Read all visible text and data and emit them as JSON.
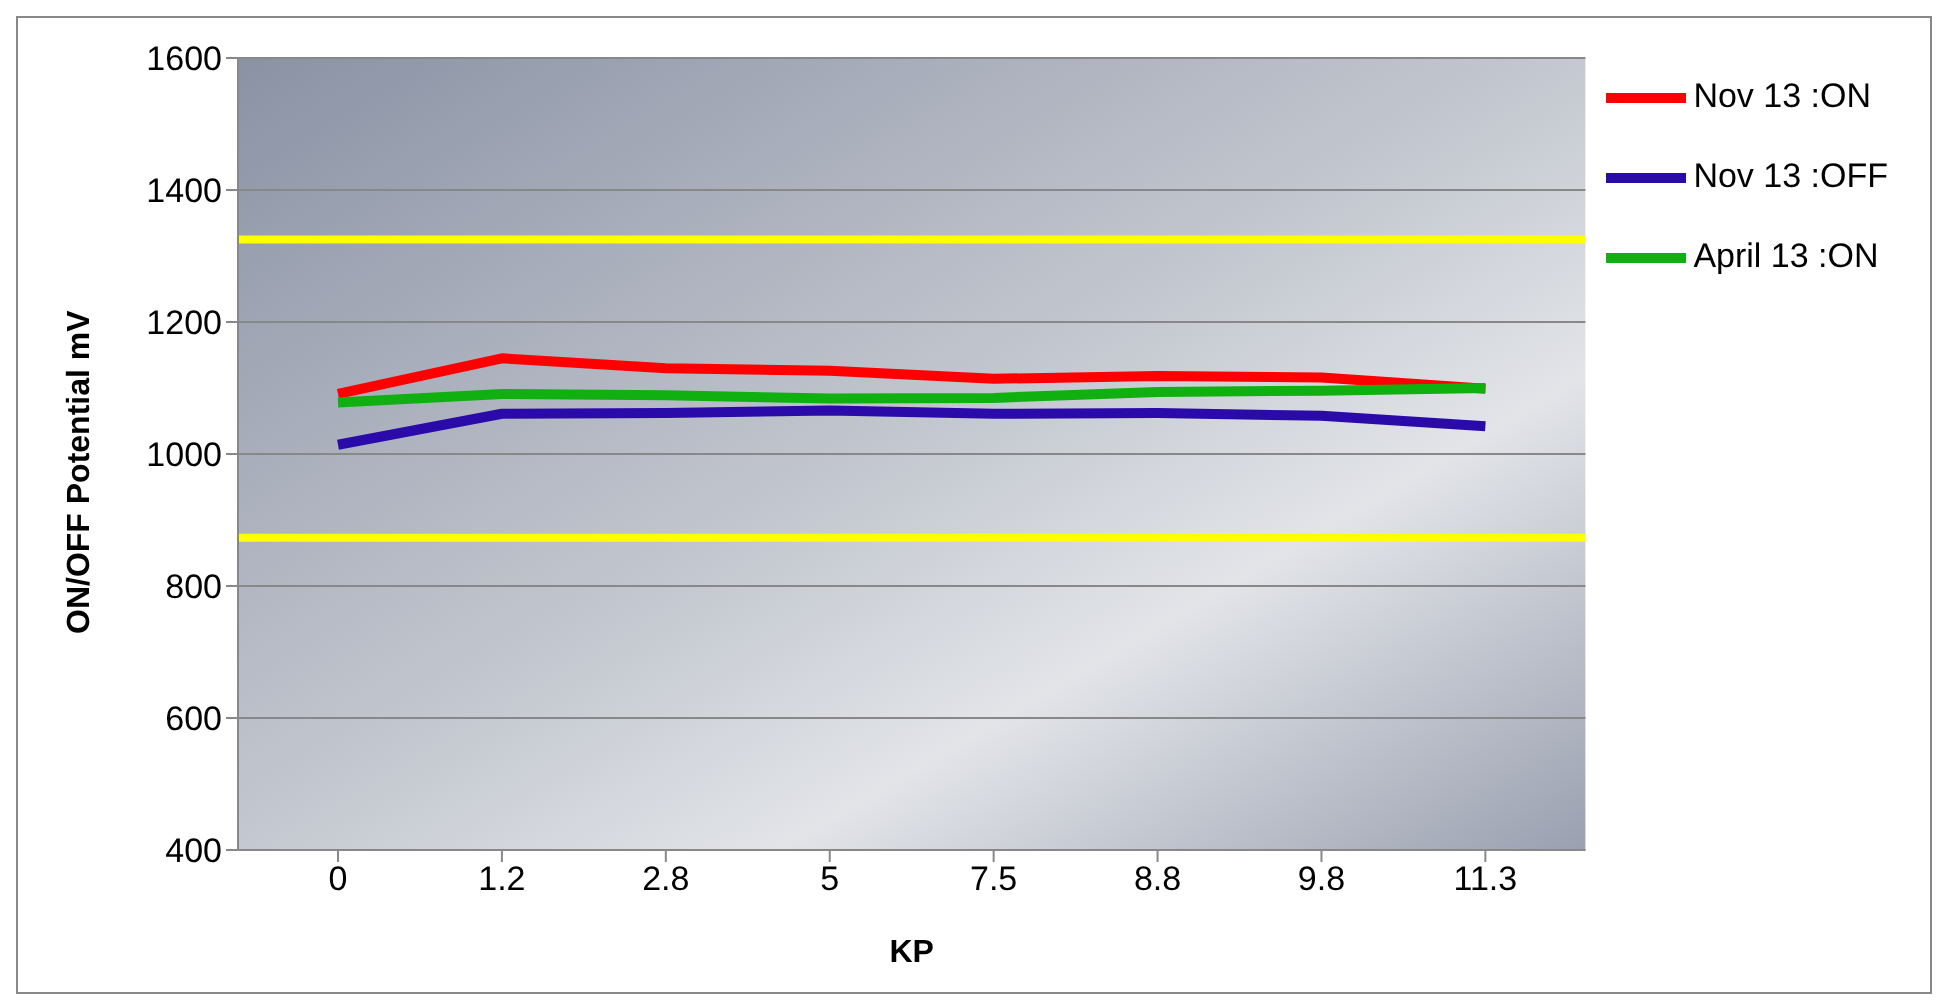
{
  "chart_data": {
    "type": "line",
    "xlabel": "KP",
    "ylabel": "ON/OFF Potential mV",
    "categories": [
      "0",
      "1.2",
      "2.8",
      "5",
      "7.5",
      "8.8",
      "9.8",
      "11.3"
    ],
    "series": [
      {
        "name": "Nov 13 :ON",
        "color": "#ff0000",
        "values": [
          1091,
          1145,
          1130,
          1126,
          1114,
          1118,
          1116,
          1099
        ]
      },
      {
        "name": "Nov 13 :OFF",
        "color": "#2a0aa8",
        "values": [
          1014,
          1061,
          1062,
          1066,
          1061,
          1062,
          1058,
          1042
        ]
      },
      {
        "name": "April 13 :ON",
        "color": "#10b010",
        "values": [
          1078,
          1091,
          1089,
          1084,
          1085,
          1094,
          1096,
          1100
        ]
      }
    ],
    "ylim": [
      400,
      1600
    ],
    "yticks": [
      400,
      600,
      800,
      1000,
      1200,
      1400,
      1600
    ],
    "grid": "y",
    "legend": "right",
    "marker": "none",
    "line_style": "solid",
    "ref_lines": [
      {
        "axis": "y",
        "value": 1325,
        "color": "#ffff00"
      },
      {
        "axis": "y",
        "value": 873,
        "color": "#ffff00"
      }
    ]
  }
}
